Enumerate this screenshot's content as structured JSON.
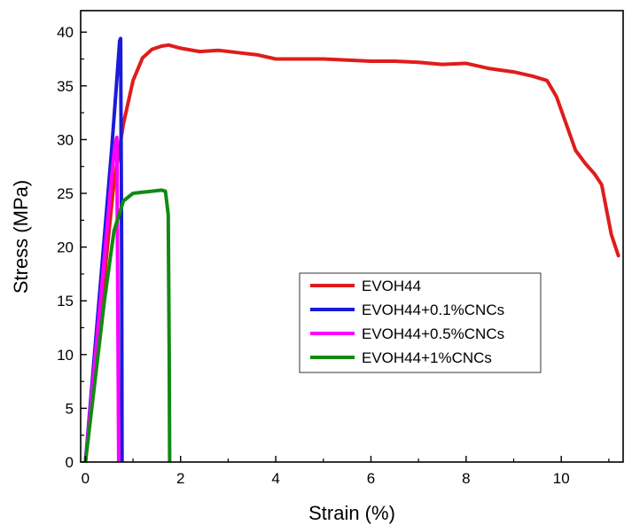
{
  "chart_data": {
    "type": "line",
    "xlabel": "Strain (%)",
    "ylabel": "Stress (MPa)",
    "xlim": [
      -0.1,
      11.3
    ],
    "ylim": [
      0,
      42
    ],
    "xticks": [
      0,
      2,
      4,
      6,
      8,
      10
    ],
    "yticks": [
      0,
      5,
      10,
      15,
      20,
      25,
      30,
      35,
      40
    ],
    "grid": false,
    "legend_position": "center-right",
    "series": [
      {
        "name": "EVOH44",
        "color": "#e01c1c",
        "x": [
          0,
          0.3,
          0.6,
          0.8,
          1.0,
          1.2,
          1.4,
          1.6,
          1.75,
          2.0,
          2.4,
          2.8,
          3.2,
          3.6,
          4.0,
          4.5,
          5.0,
          5.5,
          6.0,
          6.5,
          7.0,
          7.5,
          8.0,
          8.5,
          9.0,
          9.4,
          9.7,
          9.9,
          10.1,
          10.3,
          10.5,
          10.7,
          10.85,
          10.95,
          11.05,
          11.2
        ],
        "y": [
          0,
          13,
          26,
          31.5,
          35.5,
          37.6,
          38.4,
          38.7,
          38.8,
          38.5,
          38.2,
          38.3,
          38.1,
          37.9,
          37.5,
          37.5,
          37.5,
          37.4,
          37.3,
          37.3,
          37.2,
          37.0,
          37.1,
          36.6,
          36.3,
          35.9,
          35.5,
          34.0,
          31.5,
          29.0,
          27.8,
          26.8,
          25.8,
          23.5,
          21.2,
          19.2
        ]
      },
      {
        "name": "EVOH44+0.1%CNCs",
        "color": "#1a1adb",
        "x": [
          0,
          0.2,
          0.4,
          0.55,
          0.65,
          0.72,
          0.74,
          0.76,
          0.77
        ],
        "y": [
          0,
          10.5,
          21,
          29,
          35,
          39.2,
          39.4,
          20,
          0
        ]
      },
      {
        "name": "EVOH44+0.5%CNCs",
        "color": "#ff00ff",
        "x": [
          0,
          0.2,
          0.4,
          0.55,
          0.62,
          0.66,
          0.68,
          0.7
        ],
        "y": [
          0,
          9.5,
          19,
          26.5,
          29.5,
          30.2,
          15,
          0
        ]
      },
      {
        "name": "EVOH44+1%CNCs",
        "color": "#128a12",
        "x": [
          0,
          0.2,
          0.4,
          0.6,
          0.8,
          1.0,
          1.2,
          1.4,
          1.6,
          1.68,
          1.72,
          1.74,
          1.76,
          1.77
        ],
        "y": [
          0,
          7.5,
          15,
          21.5,
          24.3,
          25.0,
          25.1,
          25.2,
          25.3,
          25.2,
          23.8,
          23.0,
          10,
          0
        ]
      }
    ]
  }
}
